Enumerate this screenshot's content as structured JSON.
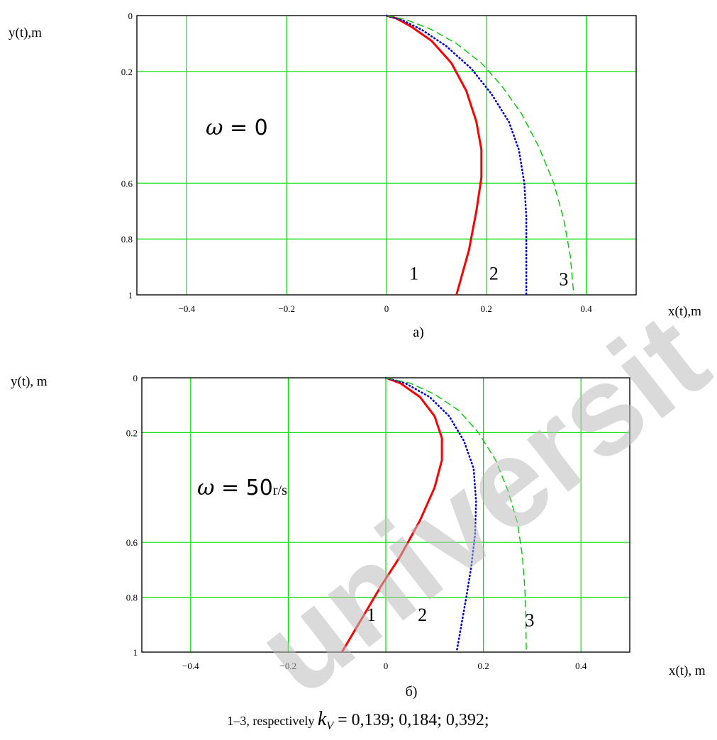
{
  "chart_data": [
    {
      "type": "line",
      "panel_label": "а)",
      "annotation": {
        "symbol": "ω",
        "text": "= 0",
        "unit": ""
      },
      "xlabel": "x(t),m",
      "ylabel": "y(t),m",
      "xlim": [
        -0.5,
        0.5
      ],
      "ylim": [
        1,
        0
      ],
      "x_ticks": [
        "−0.4",
        "−0.2",
        "0",
        "0.2",
        "0.4"
      ],
      "y_ticks": [
        "0",
        "0.2",
        "0.6",
        "0.8",
        "1"
      ],
      "grid": true,
      "grid_color": "#00e000",
      "series": [
        {
          "name": "1",
          "color": "#ff0000",
          "style": "solid",
          "x": [
            0,
            0.02,
            0.05,
            0.09,
            0.13,
            0.16,
            0.18,
            0.19,
            0.19,
            0.18,
            0.165,
            0.14
          ],
          "y": [
            0,
            0.01,
            0.04,
            0.09,
            0.17,
            0.27,
            0.38,
            0.48,
            0.58,
            0.7,
            0.84,
            1.0
          ]
        },
        {
          "name": "2",
          "color": "#0000e0",
          "style": "dotted",
          "x": [
            0,
            0.03,
            0.07,
            0.12,
            0.17,
            0.21,
            0.245,
            0.265,
            0.276,
            0.28,
            0.28,
            0.28
          ],
          "y": [
            0,
            0.015,
            0.05,
            0.11,
            0.19,
            0.28,
            0.38,
            0.48,
            0.6,
            0.72,
            0.86,
            1.0
          ]
        },
        {
          "name": "3",
          "color": "#00c800",
          "style": "dashed",
          "x": [
            0,
            0.04,
            0.09,
            0.14,
            0.19,
            0.23,
            0.27,
            0.305,
            0.335,
            0.355,
            0.368,
            0.375
          ],
          "y": [
            0,
            0.015,
            0.05,
            0.1,
            0.17,
            0.25,
            0.35,
            0.47,
            0.6,
            0.73,
            0.86,
            1.0
          ]
        }
      ],
      "curve_labels": [
        {
          "text": "1",
          "x": 0.055,
          "y": 0.92
        },
        {
          "text": "2",
          "x": 0.215,
          "y": 0.92
        },
        {
          "text": "3",
          "x": 0.355,
          "y": 0.94
        }
      ]
    },
    {
      "type": "line",
      "panel_label": "б)",
      "annotation": {
        "symbol": "ω",
        "text": "= 50",
        "unit": "r/s"
      },
      "xlabel": "x(t), m",
      "ylabel": "y(t), m",
      "xlim": [
        -0.5,
        0.5
      ],
      "ylim": [
        1,
        0
      ],
      "x_ticks": [
        "−0.4",
        "−0.2",
        "0",
        "0.2",
        "0.4"
      ],
      "y_ticks": [
        "0",
        "0.2",
        "0.6",
        "0.8",
        "1"
      ],
      "grid": true,
      "grid_color": "#00e000",
      "series": [
        {
          "name": "1",
          "color": "#ff0000",
          "style": "solid",
          "x": [
            0,
            0.03,
            0.07,
            0.1,
            0.115,
            0.115,
            0.1,
            0.07,
            0.03,
            -0.01,
            -0.05,
            -0.09
          ],
          "y": [
            0,
            0.02,
            0.07,
            0.14,
            0.22,
            0.3,
            0.4,
            0.52,
            0.65,
            0.76,
            0.88,
            1.0
          ]
        },
        {
          "name": "2",
          "color": "#0000e0",
          "style": "dotted",
          "x": [
            0,
            0.04,
            0.09,
            0.13,
            0.16,
            0.18,
            0.185,
            0.183,
            0.175,
            0.165,
            0.155,
            0.145
          ],
          "y": [
            0,
            0.02,
            0.07,
            0.14,
            0.23,
            0.33,
            0.45,
            0.57,
            0.69,
            0.8,
            0.9,
            1.0
          ]
        },
        {
          "name": "3",
          "color": "#00c800",
          "style": "dashed",
          "x": [
            0,
            0.05,
            0.1,
            0.15,
            0.19,
            0.225,
            0.25,
            0.27,
            0.28,
            0.285,
            0.287,
            0.288
          ],
          "y": [
            0,
            0.02,
            0.06,
            0.12,
            0.2,
            0.3,
            0.41,
            0.53,
            0.65,
            0.77,
            0.89,
            1.0
          ]
        }
      ],
      "curve_labels": [
        {
          "text": "1",
          "x": -0.03,
          "y": 0.86
        },
        {
          "text": "2",
          "x": 0.075,
          "y": 0.86
        },
        {
          "text": "3",
          "x": 0.295,
          "y": 0.88
        }
      ]
    }
  ],
  "caption": {
    "prefix": "1–3, respectively ",
    "symbol": "k",
    "subscript": "V",
    "values": " = 0,139;  0,184;  0,392;"
  },
  "watermark": "universit"
}
